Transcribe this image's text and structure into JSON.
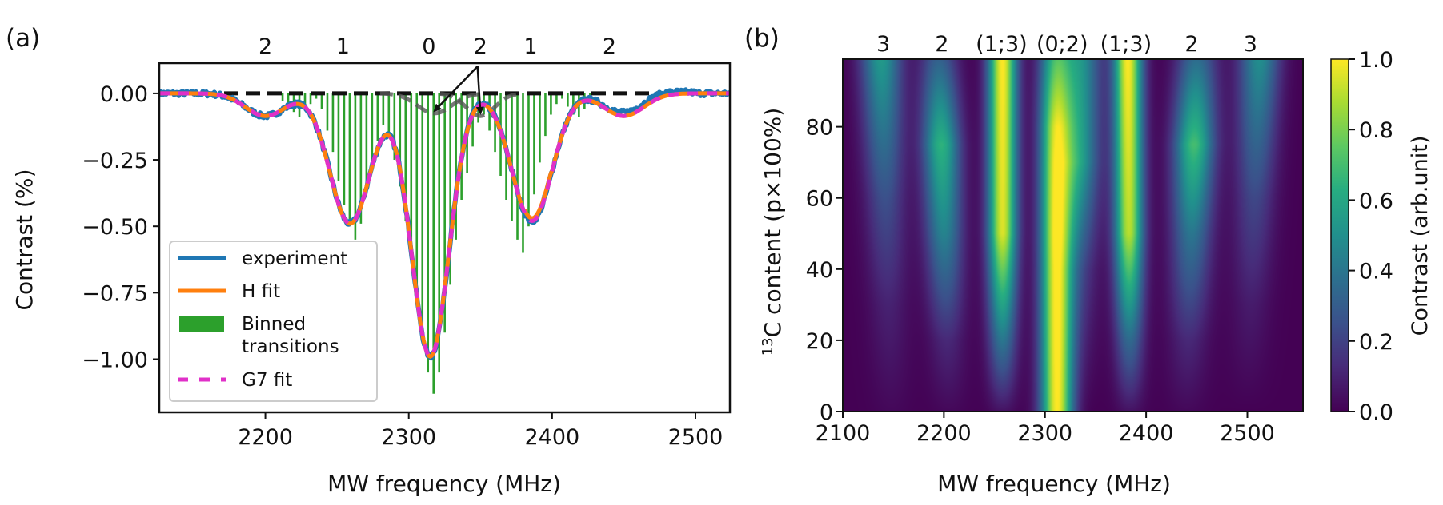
{
  "chart_data": [
    {
      "panel": "(a)",
      "type": "line",
      "xlabel": "MW frequency (MHz)",
      "ylabel": "Contrast (%)",
      "xlim": [
        2126,
        2524
      ],
      "ylim": [
        -1.2,
        0.114
      ],
      "xticks": [
        2200,
        2300,
        2400,
        2500
      ],
      "xtick_labels": [
        "2200",
        "2300",
        "2400",
        "2500"
      ],
      "yticks": [
        0.0,
        -0.25,
        -0.5,
        -0.75,
        -1.0
      ],
      "ytick_labels": [
        "0.00",
        "−0.25",
        "−0.50",
        "−0.75",
        "−1.00"
      ],
      "top_labels": [
        {
          "x": 2200,
          "text": "2"
        },
        {
          "x": 2254,
          "text": "1"
        },
        {
          "x": 2314,
          "text": "0"
        },
        {
          "x": 2350,
          "text": "2"
        },
        {
          "x": 2385,
          "text": "1"
        },
        {
          "x": 2440,
          "text": "2"
        }
      ],
      "arrows": {
        "from_x": 2348,
        "from_y": 0.102,
        "to": [
          {
            "x": 2318,
            "y": -0.066
          },
          {
            "x": 2350,
            "y": -0.075
          }
        ]
      },
      "legend": {
        "placement": "lower-left",
        "entries": [
          {
            "label": "experiment",
            "color": "#1f77b4",
            "style": "line"
          },
          {
            "label": "H fit",
            "color": "#ff7f0e",
            "style": "line"
          },
          {
            "label": "Binned transitions",
            "label_lines": [
              "Binned",
              "transitions"
            ],
            "color": "#2ca02c",
            "style": "patch"
          },
          {
            "label": "G7 fit",
            "color": "#e030c8",
            "style": "dashed"
          }
        ]
      },
      "components": [
        {
          "center": 2200,
          "amp": -0.085,
          "width": 14
        },
        {
          "center": 2259,
          "amp": -0.49,
          "width": 14
        },
        {
          "center": 2315,
          "amp": -0.99,
          "width": 13
        },
        {
          "center": 2386,
          "amp": -0.48,
          "width": 14
        },
        {
          "center": 2450,
          "amp": -0.085,
          "width": 14
        }
      ],
      "gray_components": [
        {
          "center": 2318,
          "amp": -0.075,
          "width": 12
        },
        {
          "center": 2350,
          "amp": -0.085,
          "width": 10
        }
      ],
      "baseline": 0.0,
      "noise_amplitude": 0.012,
      "stems": {
        "x_start": 2212,
        "x_step": 3.9,
        "count": 56,
        "min_values_note": "stem depth follows transitions",
        "values": [
          -0.03,
          -0.05,
          -0.07,
          -0.09,
          -0.06,
          -0.04,
          -0.02,
          -0.06,
          -0.14,
          -0.22,
          -0.33,
          -0.42,
          -0.5,
          -0.55,
          -0.49,
          -0.38,
          -0.27,
          -0.18,
          -0.12,
          -0.15,
          -0.25,
          -0.35,
          -0.48,
          -0.62,
          -0.78,
          -0.92,
          -1.05,
          -1.13,
          -1.05,
          -0.9,
          -0.72,
          -0.55,
          -0.4,
          -0.3,
          -0.2,
          -0.11,
          -0.08,
          -0.14,
          -0.22,
          -0.31,
          -0.4,
          -0.48,
          -0.55,
          -0.6,
          -0.5,
          -0.38,
          -0.26,
          -0.16,
          -0.08,
          -0.04,
          -0.02,
          -0.05,
          -0.08,
          -0.09,
          -0.06,
          -0.03
        ]
      },
      "colors": {
        "experiment": "#1f77b4",
        "h_fit": "#ff7f0e",
        "g7_fit": "#e030c8",
        "stems": "#2ca02c",
        "baseline": "#111111",
        "gray": "#555555"
      }
    },
    {
      "panel": "(b)",
      "type": "heatmap",
      "xlabel": "MW frequency (MHz)",
      "ylabel_prefix": "13",
      "ylabel": "C content (p×100%)",
      "xlim": [
        2100,
        2555
      ],
      "ylim": [
        0,
        99
      ],
      "xticks": [
        2100,
        2200,
        2300,
        2400,
        2500
      ],
      "xtick_labels": [
        "2100",
        "2200",
        "2300",
        "2400",
        "2500"
      ],
      "yticks": [
        0,
        20,
        40,
        60,
        80
      ],
      "ytick_labels": [
        "0",
        "20",
        "40",
        "60",
        "80"
      ],
      "top_labels": [
        {
          "x": 2140,
          "text": "3"
        },
        {
          "x": 2198,
          "text": "2"
        },
        {
          "x": 2257,
          "text": "(1;3)"
        },
        {
          "x": 2317,
          "text": "(0;2)"
        },
        {
          "x": 2380,
          "text": "(1;3)"
        },
        {
          "x": 2445,
          "text": "2"
        },
        {
          "x": 2503,
          "text": "3"
        }
      ],
      "colorbar": {
        "label": "Contrast (arb.unit)",
        "range": [
          0.0,
          1.0
        ],
        "ticks": [
          0.0,
          0.2,
          0.4,
          0.6,
          0.8,
          1.0
        ],
        "tick_labels": [
          "0.0",
          "0.2",
          "0.4",
          "0.6",
          "0.8",
          "1.0"
        ],
        "colormap": "viridis"
      },
      "lines": [
        {
          "center_p0": 2148,
          "center_p100": 2138,
          "width": 14,
          "amp": [
            [
              0,
              0.02
            ],
            [
              30,
              0.1
            ],
            [
              60,
              0.25
            ],
            [
              100,
              0.55
            ]
          ]
        },
        {
          "center_p0": 2205,
          "center_p100": 2195,
          "width": 13,
          "amp": [
            [
              0,
              0.02
            ],
            [
              20,
              0.12
            ],
            [
              50,
              0.45
            ],
            [
              75,
              0.65
            ],
            [
              100,
              0.3
            ]
          ]
        },
        {
          "center_p0": 2258,
          "center_p100": 2258,
          "width": 10,
          "amp": [
            [
              0,
              0.05
            ],
            [
              20,
              0.4
            ],
            [
              50,
              0.95
            ],
            [
              100,
              1.0
            ]
          ]
        },
        {
          "center_p0": 2312,
          "center_p100": 2310,
          "width": 11,
          "amp": [
            [
              0,
              1.0
            ],
            [
              50,
              0.95
            ],
            [
              80,
              0.85
            ],
            [
              100,
              0.6
            ]
          ]
        },
        {
          "center_p0": 2330,
          "center_p100": 2335,
          "width": 14,
          "amp": [
            [
              0,
              0.0
            ],
            [
              40,
              0.2
            ],
            [
              70,
              0.55
            ],
            [
              100,
              0.5
            ]
          ]
        },
        {
          "center_p0": 2384,
          "center_p100": 2382,
          "width": 10,
          "amp": [
            [
              0,
              0.05
            ],
            [
              20,
              0.35
            ],
            [
              50,
              0.9
            ],
            [
              100,
              1.0
            ]
          ]
        },
        {
          "center_p0": 2440,
          "center_p100": 2450,
          "width": 14,
          "amp": [
            [
              0,
              0.02
            ],
            [
              20,
              0.12
            ],
            [
              50,
              0.4
            ],
            [
              75,
              0.7
            ],
            [
              100,
              0.35
            ]
          ]
        },
        {
          "center_p0": 2500,
          "center_p100": 2512,
          "width": 14,
          "amp": [
            [
              0,
              0.0
            ],
            [
              30,
              0.08
            ],
            [
              60,
              0.22
            ],
            [
              100,
              0.5
            ]
          ]
        }
      ]
    }
  ]
}
